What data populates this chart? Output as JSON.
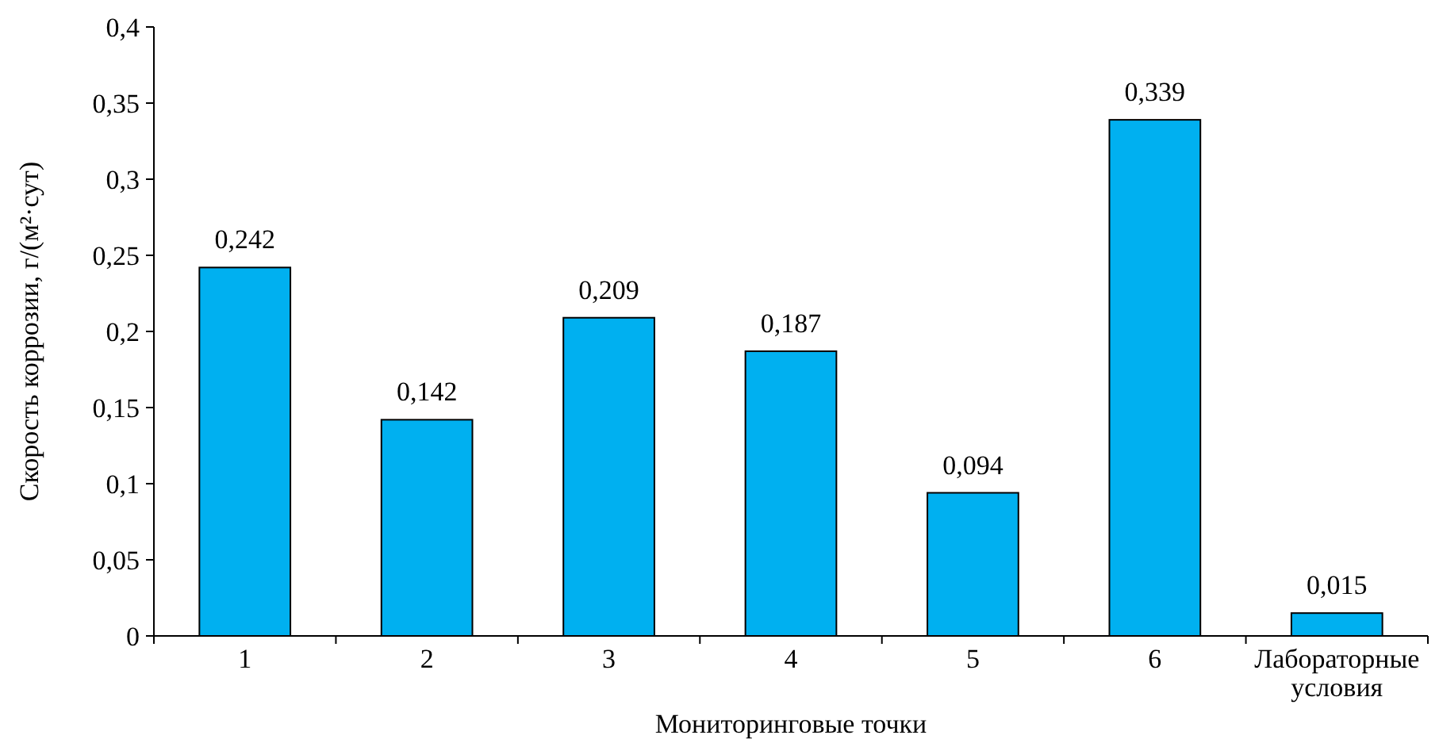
{
  "chart_data": {
    "type": "bar",
    "xlabel": "Мониторинговые точки",
    "ylabel": "Скорость коррозии, г/(м²·сут)",
    "categories": [
      "1",
      "2",
      "3",
      "4",
      "5",
      "6",
      "Лабораторные условия"
    ],
    "values": [
      0.242,
      0.142,
      0.209,
      0.187,
      0.094,
      0.339,
      0.015
    ],
    "value_labels": [
      "0,242",
      "0,142",
      "0,209",
      "0,187",
      "0,094",
      "0,339",
      "0,015"
    ],
    "color": "#00b0f0",
    "ylim": [
      0,
      0.4
    ],
    "yticks": [
      {
        "value": 0,
        "label": "0"
      },
      {
        "value": 0.05,
        "label": "0,05"
      },
      {
        "value": 0.1,
        "label": "0,1"
      },
      {
        "value": 0.15,
        "label": "0,15"
      },
      {
        "value": 0.2,
        "label": "0,2"
      },
      {
        "value": 0.25,
        "label": "0,25"
      },
      {
        "value": 0.3,
        "label": "0,3"
      },
      {
        "value": 0.35,
        "label": "0,35"
      },
      {
        "value": 0.4,
        "label": "0,4"
      }
    ],
    "grid": false
  }
}
